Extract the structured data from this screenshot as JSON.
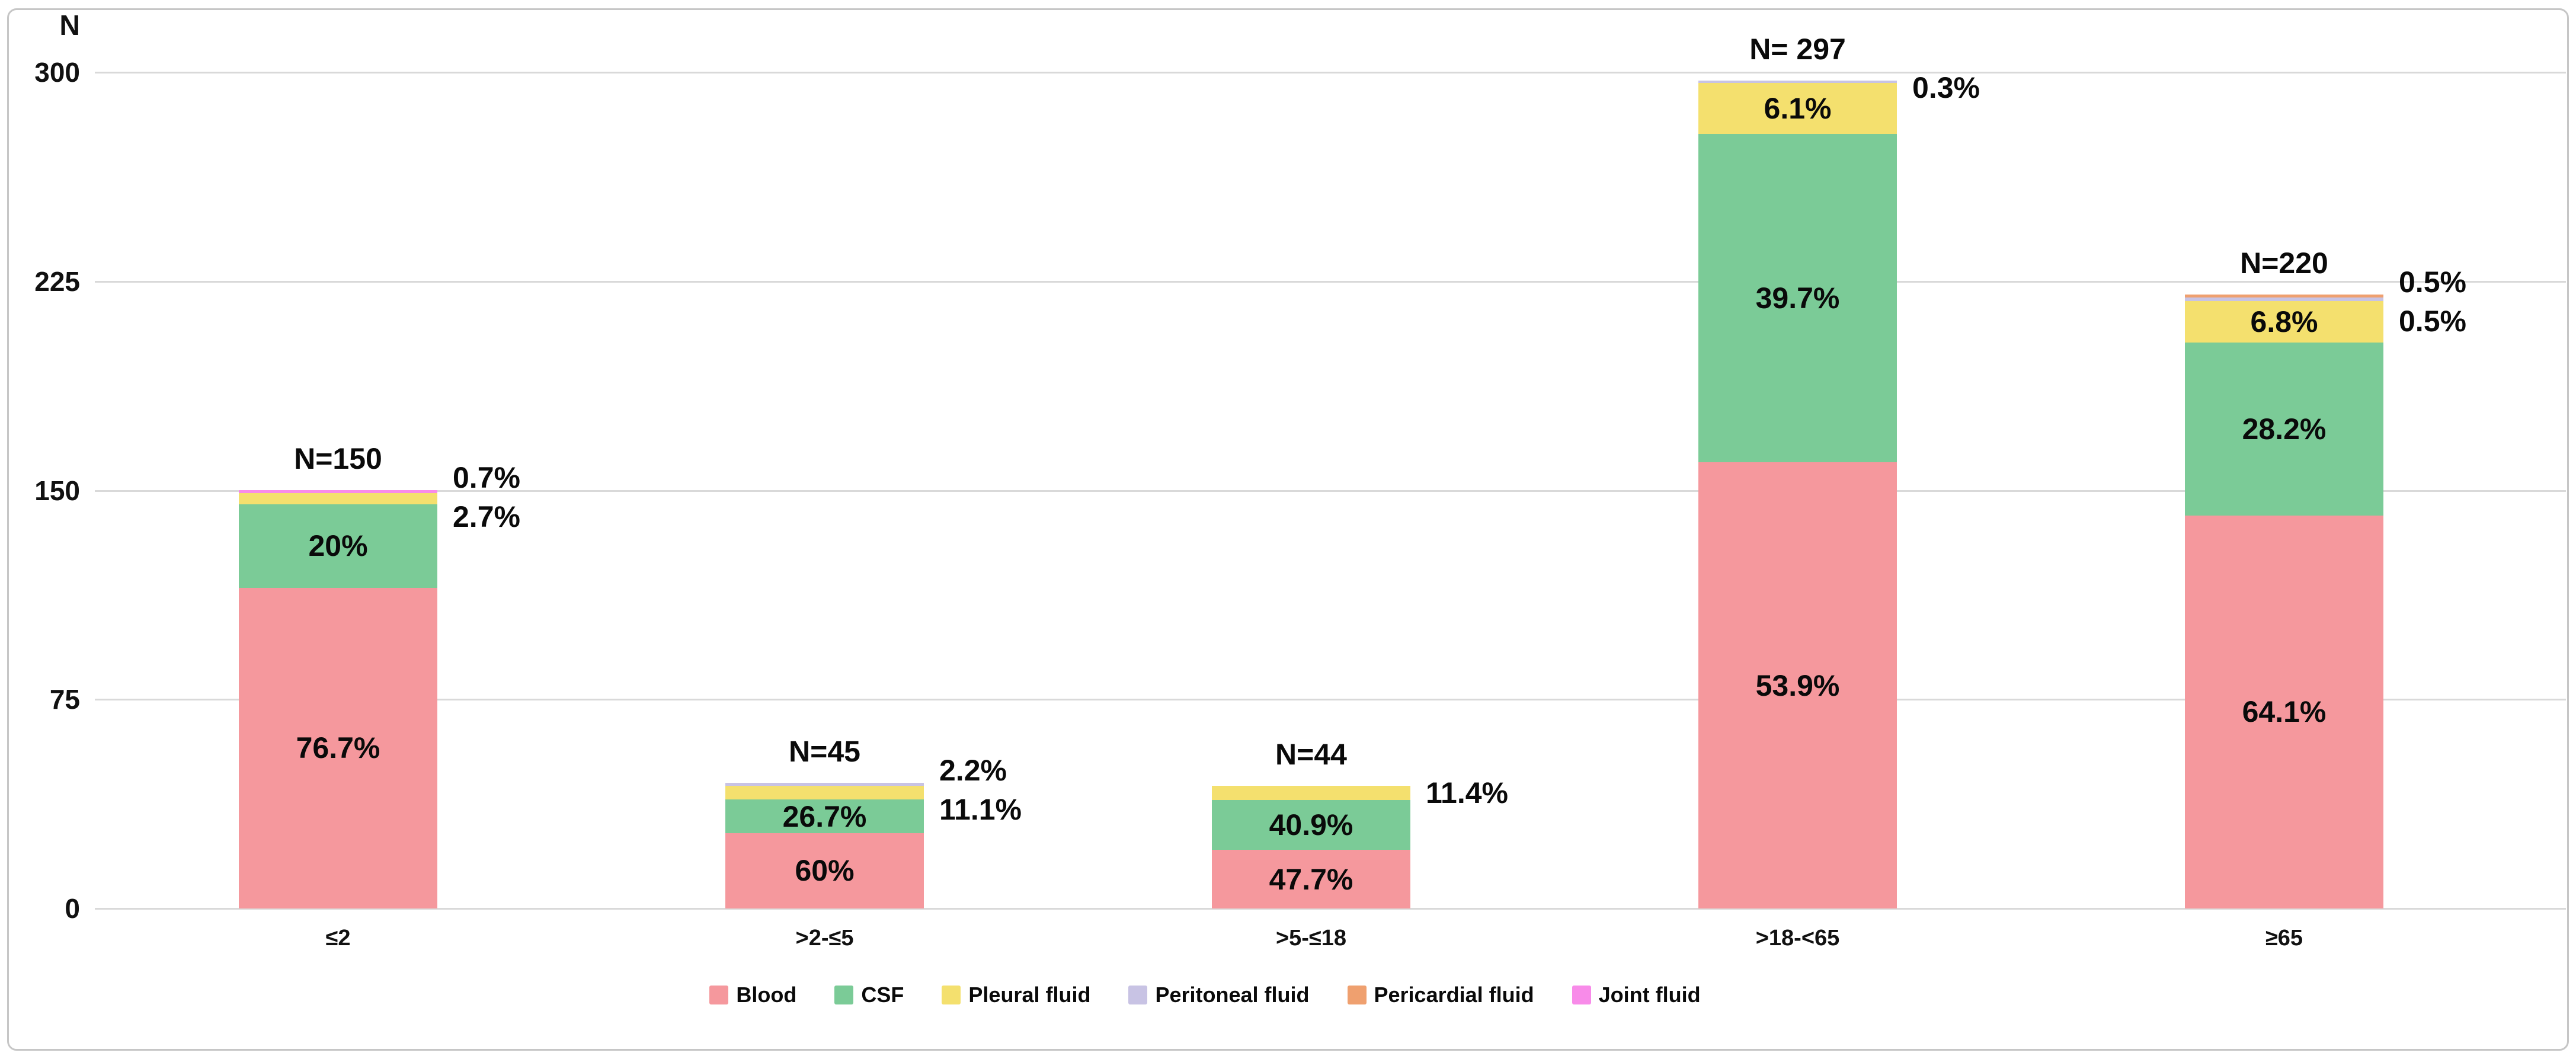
{
  "chart_data": {
    "type": "bar",
    "stacked": true,
    "title": "",
    "ylabel": "N",
    "xlabel": "",
    "ylim": [
      0,
      300
    ],
    "yticks": [
      0,
      75,
      150,
      225,
      300
    ],
    "grid": true,
    "legend_position": "bottom",
    "categories": [
      "≤2",
      ">2-≤5",
      ">5-≤18",
      ">18-<65",
      "≥65"
    ],
    "totals": [
      150,
      45,
      44,
      297,
      220
    ],
    "n_labels": [
      "N=150",
      "N=45",
      "N=44",
      "N= 297",
      "N=220"
    ],
    "series": [
      {
        "name": "Blood",
        "color": "#F5989D",
        "pct": [
          76.7,
          60,
          47.7,
          53.9,
          64.1
        ],
        "labels": [
          "76.7%",
          "60%",
          "47.7%",
          "53.9%",
          "64.1%"
        ],
        "placements": [
          "inside",
          "inside",
          "inside",
          "inside",
          "inside"
        ]
      },
      {
        "name": "CSF",
        "color": "#7BCB97",
        "pct": [
          20,
          26.7,
          40.9,
          39.7,
          28.2
        ],
        "labels": [
          "20%",
          "26.7%",
          "40.9%",
          "39.7%",
          "28.2%"
        ],
        "placements": [
          "inside",
          "inside",
          "inside",
          "inside",
          "inside"
        ]
      },
      {
        "name": "Pleural fluid",
        "color": "#F4E06E",
        "pct": [
          2.7,
          11.1,
          11.4,
          6.1,
          6.8
        ],
        "labels": [
          "2.7%",
          "11.1%",
          "11.4%",
          "6.1%",
          "6.8%"
        ],
        "placements": [
          "outside",
          "outside",
          "outside",
          "inside",
          "inside"
        ]
      },
      {
        "name": "Peritoneal fluid",
        "color": "#C8C3E4",
        "pct": [
          0,
          2.2,
          0,
          0.3,
          0.5
        ],
        "labels": [
          "",
          "2.2%",
          "",
          "0.3%",
          "0.5%"
        ],
        "placements": [
          "none",
          "outside",
          "none",
          "outside",
          "outside"
        ]
      },
      {
        "name": "Pericardial fluid",
        "color": "#EFA06F",
        "pct": [
          0,
          0,
          0,
          0,
          0.5
        ],
        "labels": [
          "",
          "",
          "",
          "",
          "0.5%"
        ],
        "placements": [
          "none",
          "none",
          "none",
          "none",
          "outside"
        ]
      },
      {
        "name": "Joint fluid",
        "color": "#F88BE9",
        "pct": [
          0.7,
          0,
          0,
          0,
          0
        ],
        "labels": [
          "0.7%",
          "",
          "",
          "",
          ""
        ],
        "placements": [
          "outside",
          "none",
          "none",
          "none",
          "none"
        ]
      }
    ]
  }
}
